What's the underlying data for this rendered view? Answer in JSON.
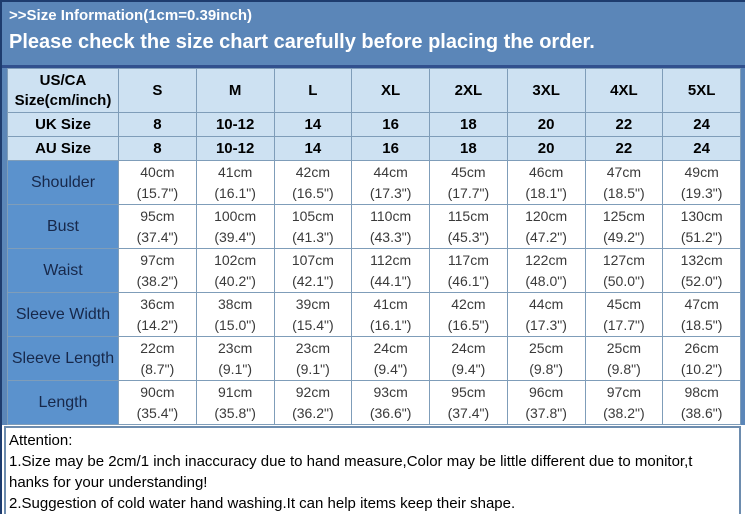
{
  "banner": {
    "title": ">>Size Information(1cm=0.39inch)",
    "subtitle": "Please check the size chart carefully before placing the order."
  },
  "size_table": {
    "corner": {
      "line1": "US/CA",
      "line2": "Size(cm/inch)"
    },
    "size_columns": [
      "S",
      "M",
      "L",
      "XL",
      "2XL",
      "3XL",
      "4XL",
      "5XL"
    ],
    "size_rows": [
      {
        "label": "UK Size",
        "values": [
          "8",
          "10-12",
          "14",
          "16",
          "18",
          "20",
          "22",
          "24"
        ]
      },
      {
        "label": "AU Size",
        "values": [
          "8",
          "10-12",
          "14",
          "16",
          "18",
          "20",
          "22",
          "24"
        ]
      }
    ],
    "measurement_rows": [
      {
        "label": "Shoulder",
        "cells": [
          {
            "cm": "40cm",
            "inch": "(15.7\")"
          },
          {
            "cm": "41cm",
            "inch": "(16.1\")"
          },
          {
            "cm": "42cm",
            "inch": "(16.5\")"
          },
          {
            "cm": "44cm",
            "inch": "(17.3\")"
          },
          {
            "cm": "45cm",
            "inch": "(17.7\")"
          },
          {
            "cm": "46cm",
            "inch": "(18.1\")"
          },
          {
            "cm": "47cm",
            "inch": "(18.5\")"
          },
          {
            "cm": "49cm",
            "inch": "(19.3\")"
          }
        ]
      },
      {
        "label": "Bust",
        "cells": [
          {
            "cm": "95cm",
            "inch": "(37.4\")"
          },
          {
            "cm": "100cm",
            "inch": "(39.4\")"
          },
          {
            "cm": "105cm",
            "inch": "(41.3\")"
          },
          {
            "cm": "110cm",
            "inch": "(43.3\")"
          },
          {
            "cm": "115cm",
            "inch": "(45.3\")"
          },
          {
            "cm": "120cm",
            "inch": "(47.2\")"
          },
          {
            "cm": "125cm",
            "inch": "(49.2\")"
          },
          {
            "cm": "130cm",
            "inch": "(51.2\")"
          }
        ]
      },
      {
        "label": "Waist",
        "cells": [
          {
            "cm": "97cm",
            "inch": "(38.2\")"
          },
          {
            "cm": "102cm",
            "inch": "(40.2\")"
          },
          {
            "cm": "107cm",
            "inch": "(42.1\")"
          },
          {
            "cm": "112cm",
            "inch": "(44.1\")"
          },
          {
            "cm": "117cm",
            "inch": "(46.1\")"
          },
          {
            "cm": "122cm",
            "inch": "(48.0\")"
          },
          {
            "cm": "127cm",
            "inch": "(50.0\")"
          },
          {
            "cm": "132cm",
            "inch": "(52.0\")"
          }
        ]
      },
      {
        "label": "Sleeve Width",
        "cells": [
          {
            "cm": "36cm",
            "inch": "(14.2\")"
          },
          {
            "cm": "38cm",
            "inch": "(15.0\")"
          },
          {
            "cm": "39cm",
            "inch": "(15.4\")"
          },
          {
            "cm": "41cm",
            "inch": "(16.1\")"
          },
          {
            "cm": "42cm",
            "inch": "(16.5\")"
          },
          {
            "cm": "44cm",
            "inch": "(17.3\")"
          },
          {
            "cm": "45cm",
            "inch": "(17.7\")"
          },
          {
            "cm": "47cm",
            "inch": "(18.5\")"
          }
        ]
      },
      {
        "label": "Sleeve Length",
        "cells": [
          {
            "cm": "22cm",
            "inch": "(8.7\")"
          },
          {
            "cm": "23cm",
            "inch": "(9.1\")"
          },
          {
            "cm": "23cm",
            "inch": "(9.1\")"
          },
          {
            "cm": "24cm",
            "inch": "(9.4\")"
          },
          {
            "cm": "24cm",
            "inch": "(9.4\")"
          },
          {
            "cm": "25cm",
            "inch": "(9.8\")"
          },
          {
            "cm": "25cm",
            "inch": "(9.8\")"
          },
          {
            "cm": "26cm",
            "inch": "(10.2\")"
          }
        ]
      },
      {
        "label": "Length",
        "cells": [
          {
            "cm": "90cm",
            "inch": "(35.4\")"
          },
          {
            "cm": "91cm",
            "inch": "(35.8\")"
          },
          {
            "cm": "92cm",
            "inch": "(36.2\")"
          },
          {
            "cm": "93cm",
            "inch": "(36.6\")"
          },
          {
            "cm": "95cm",
            "inch": "(37.4\")"
          },
          {
            "cm": "96cm",
            "inch": "(37.8\")"
          },
          {
            "cm": "97cm",
            "inch": "(38.2\")"
          },
          {
            "cm": "98cm",
            "inch": "(38.6\")"
          }
        ]
      }
    ]
  },
  "attention": {
    "lines": [
      "Attention:",
      "1.Size may be 2cm/1 inch inaccuracy due to hand measure,Color may be little different due to monitor,t",
      "hanks for your understanding!",
      "2.Suggestion of cold water hand washing.It can help items keep their shape."
    ]
  },
  "colors": {
    "banner_bg": "#5b86b8",
    "dark_border": "#1e3c6e",
    "separator": "#31508d",
    "header_bg": "#cde1f2",
    "label_bg": "#5b92cd",
    "grid_line": "#7f9db9",
    "attention_border": "#6d8cae"
  }
}
